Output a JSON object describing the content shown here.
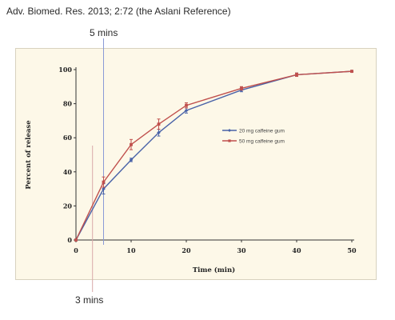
{
  "header": {
    "citation": "Adv. Biomed. Res. 2013; 2:72 (the Aslani Reference)"
  },
  "annotations": {
    "top_label": "5 mins",
    "bottom_label": "3 mins",
    "top_marker_x": 5,
    "bottom_marker_x": 3
  },
  "chart_data": {
    "type": "line",
    "title": "",
    "xlabel": "Time (min)",
    "ylabel": "Percent of release",
    "xlim": [
      0,
      50
    ],
    "ylim": [
      0,
      100
    ],
    "x_ticks": [
      0,
      10,
      20,
      30,
      40,
      50
    ],
    "y_ticks": [
      0,
      20,
      40,
      60,
      80,
      100
    ],
    "grid": false,
    "legend_position": "right-middle",
    "x": [
      0,
      5,
      10,
      15,
      20,
      30,
      40,
      50
    ],
    "series": [
      {
        "name": "20 mg caffeine gum",
        "color": "#4a63a8",
        "values": [
          0,
          30,
          47,
          63,
          76,
          88,
          97,
          99
        ],
        "errors": [
          0,
          3,
          1,
          2,
          1.5,
          1,
          1,
          0.5
        ]
      },
      {
        "name": "50 mg caffeine gum",
        "color": "#c0504d",
        "values": [
          0,
          34,
          56,
          68,
          79,
          89,
          97,
          99
        ],
        "errors": [
          0,
          3,
          3,
          3,
          1.5,
          1,
          1,
          0.5
        ]
      }
    ]
  }
}
